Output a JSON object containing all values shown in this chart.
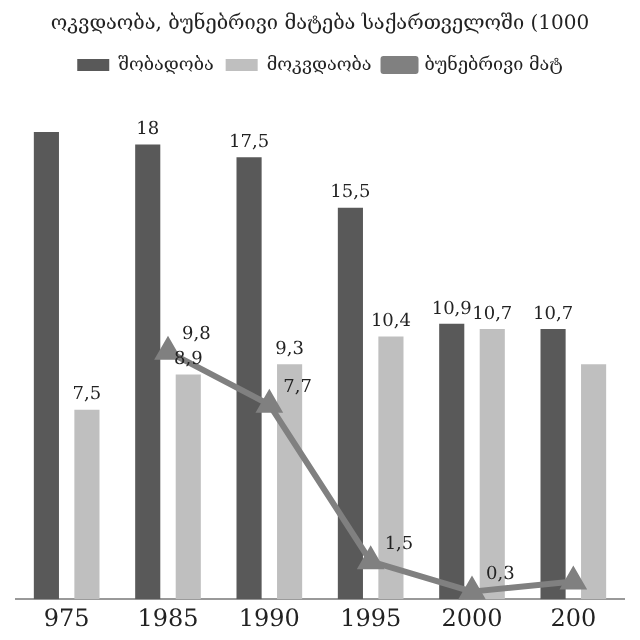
{
  "chart_data": {
    "type": "bar",
    "title": "ოკვდაობა, ბუნებრივი მატება საქართველოში (1000",
    "categories": [
      "975",
      "1985",
      "1990",
      "1995",
      "2000",
      "200"
    ],
    "series": [
      {
        "name": "შობადობა",
        "color": "#595959",
        "values": [
          18.5,
          18,
          17.5,
          15.5,
          10.9,
          10.7
        ],
        "value_labels": [
          null,
          "18",
          "17,5",
          "15,5",
          "10,9",
          "10,7"
        ]
      },
      {
        "name": "მოკვდაობა",
        "color": "#bfbfbf",
        "values": [
          7.5,
          8.9,
          9.3,
          10.4,
          10.7,
          9.3
        ],
        "value_labels": [
          "7,5",
          "8,9",
          "9,3",
          "10,4",
          "10,7",
          null
        ]
      },
      {
        "name": "ბუნებრივი მატ",
        "type": "line",
        "color": "#808080",
        "marker": "triangle",
        "values": [
          null,
          9.8,
          7.7,
          1.5,
          0.3,
          0.7
        ],
        "value_labels": [
          null,
          "9,8",
          "7,7",
          "1,5",
          "0,3",
          null
        ]
      }
    ],
    "legend": "top",
    "grid": false
  }
}
